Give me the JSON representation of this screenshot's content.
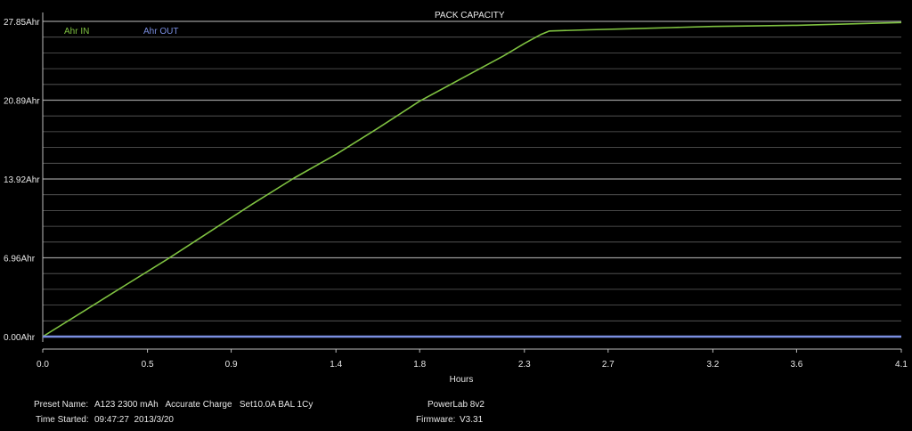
{
  "chart_data": {
    "type": "line",
    "title": "PACK CAPACITY",
    "xlabel": "Hours",
    "ylabel": "",
    "xlim": [
      0,
      4.1
    ],
    "ylim": [
      0,
      27.85
    ],
    "x_ticks": [
      "0.0",
      "0.5",
      "0.9",
      "1.4",
      "1.8",
      "2.3",
      "2.7",
      "3.2",
      "3.6",
      "4.1"
    ],
    "y_ticks": [
      "0.00Ahr",
      "6.96Ahr",
      "13.92Ahr",
      "20.89Ahr",
      "27.85Ahr"
    ],
    "grid": true,
    "legend": "top-left",
    "series": [
      {
        "name": "Ahr IN",
        "color": "#7fc241",
        "x": [
          0.0,
          0.2,
          0.4,
          0.6,
          0.8,
          1.0,
          1.2,
          1.4,
          1.6,
          1.8,
          2.0,
          2.2,
          2.3,
          2.38,
          2.42,
          2.6,
          2.8,
          3.0,
          3.2,
          3.4,
          3.6,
          3.8,
          4.0,
          4.1
        ],
        "y": [
          0.0,
          2.3,
          4.6,
          6.9,
          9.3,
          11.7,
          14.0,
          16.1,
          18.4,
          20.8,
          22.8,
          24.8,
          25.9,
          26.7,
          27.0,
          27.1,
          27.2,
          27.3,
          27.4,
          27.45,
          27.5,
          27.6,
          27.7,
          27.75
        ]
      },
      {
        "name": "Ahr OUT",
        "color": "#7a8ee0",
        "x": [
          0.0,
          4.1
        ],
        "y": [
          0.0,
          0.0
        ]
      }
    ]
  },
  "info": {
    "preset_label": "Preset Name:",
    "preset_value": "A123 2300 mAh   Accurate Charge   Set10.0A BAL 1Cy",
    "time_label": "Time Started:",
    "time_value": "09:47:27  2013/3/20",
    "device": "PowerLab 8v2",
    "firmware_label": "Firmware:",
    "firmware_value": "V3.31"
  }
}
